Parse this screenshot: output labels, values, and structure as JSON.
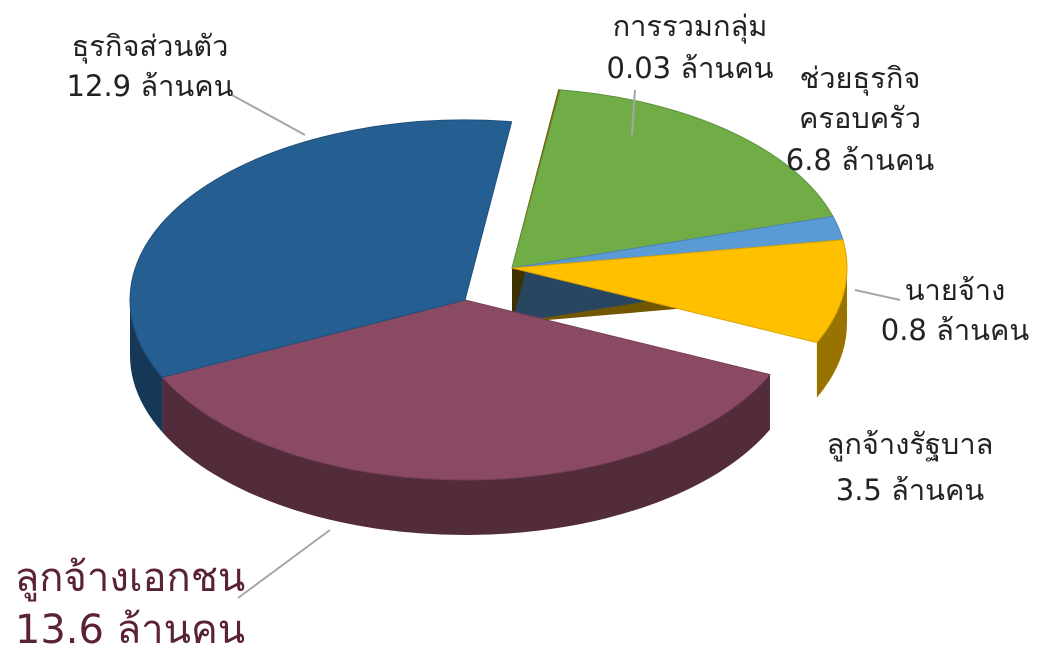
{
  "chart_data": {
    "type": "pie3d",
    "categories": [
      "การรวมกลุ่ม",
      [
        "ช่วยธุรกิจ",
        "ครอบครัว"
      ],
      "นายจ้าง",
      "ลูกจ้างรัฐบาล",
      "ลูกจ้างเอกชน",
      "ธุรกิจส่วนตัว"
    ],
    "values": [
      0.03,
      6.8,
      0.8,
      3.5,
      13.6,
      12.9
    ],
    "value_labels": [
      "0.03 ล้านคน",
      "6.8 ล้านคน",
      "0.8 ล้านคน",
      "3.5 ล้านคน",
      "13.6 ล้านคน",
      "12.9 ล้านคน"
    ],
    "colors": [
      "#8a6a00",
      "#70ad47",
      "#5b9bd5",
      "#ffc000",
      "#8b4a63",
      "#255e91"
    ]
  }
}
